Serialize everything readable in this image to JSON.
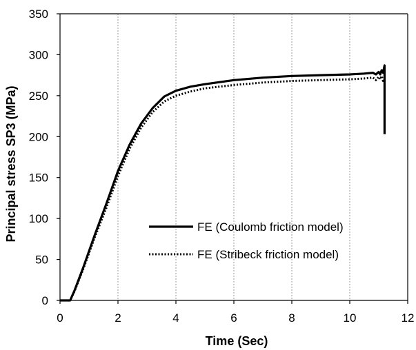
{
  "chart_data": {
    "type": "line",
    "title": "",
    "xlabel": "Time (Sec)",
    "ylabel": "Principal stress SP3 (MPa)",
    "xlim": [
      0,
      12
    ],
    "ylim": [
      0,
      350
    ],
    "xticks": [
      0,
      2,
      4,
      6,
      8,
      10,
      12
    ],
    "yticks": [
      0,
      50,
      100,
      150,
      200,
      250,
      300,
      350
    ],
    "x_tick_labels": [
      "0",
      "2",
      "4",
      "6",
      "8",
      "10",
      "12"
    ],
    "y_tick_labels": [
      "0",
      "50",
      "100",
      "150",
      "200",
      "250",
      "300",
      "350"
    ],
    "grid": "vertical dotted",
    "legend_position": "lower-center",
    "series": [
      {
        "name": "FE (Coulomb friction model)",
        "line_style": "solid",
        "color": "#000000",
        "points": [
          [
            0,
            0
          ],
          [
            0.35,
            0
          ],
          [
            0.5,
            12
          ],
          [
            0.8,
            40
          ],
          [
            1.2,
            80
          ],
          [
            1.6,
            118
          ],
          [
            2.0,
            158
          ],
          [
            2.4,
            190
          ],
          [
            2.8,
            216
          ],
          [
            3.2,
            235
          ],
          [
            3.6,
            249
          ],
          [
            4.0,
            256
          ],
          [
            4.5,
            261
          ],
          [
            5.0,
            264
          ],
          [
            6.0,
            269
          ],
          [
            7.0,
            272
          ],
          [
            8.0,
            274
          ],
          [
            9.0,
            275
          ],
          [
            10.0,
            276
          ],
          [
            10.5,
            277
          ],
          [
            10.8,
            278
          ],
          [
            10.9,
            276
          ],
          [
            11.0,
            279
          ],
          [
            11.05,
            276
          ],
          [
            11.1,
            281
          ],
          [
            11.15,
            278
          ],
          [
            11.2,
            287
          ],
          [
            11.2,
            203
          ]
        ]
      },
      {
        "name": "FE (Stribeck friction model)",
        "line_style": "dotted",
        "color": "#000000",
        "points": [
          [
            0,
            0
          ],
          [
            0.35,
            0
          ],
          [
            0.5,
            11
          ],
          [
            0.8,
            38
          ],
          [
            1.2,
            77
          ],
          [
            1.6,
            113
          ],
          [
            2.0,
            152
          ],
          [
            2.4,
            185
          ],
          [
            2.8,
            211
          ],
          [
            3.2,
            230
          ],
          [
            3.6,
            243
          ],
          [
            4.0,
            250
          ],
          [
            4.5,
            255
          ],
          [
            5.0,
            259
          ],
          [
            6.0,
            263
          ],
          [
            7.0,
            266
          ],
          [
            8.0,
            268
          ],
          [
            9.0,
            269
          ],
          [
            10.0,
            270
          ],
          [
            10.5,
            271
          ],
          [
            10.8,
            272
          ],
          [
            10.9,
            269
          ],
          [
            11.0,
            273
          ],
          [
            11.05,
            270
          ],
          [
            11.1,
            274
          ],
          [
            11.15,
            268
          ],
          [
            11.2,
            270
          ]
        ]
      }
    ]
  }
}
